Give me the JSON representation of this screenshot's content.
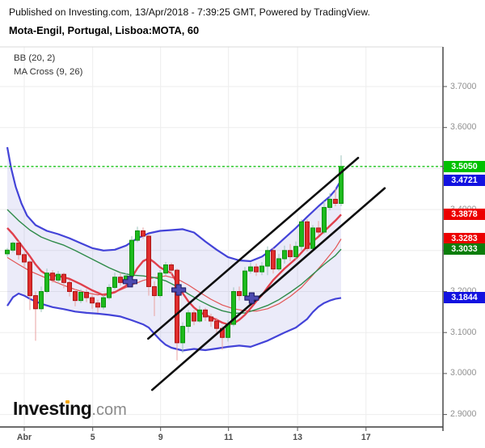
{
  "header": {
    "published_line": "Published on Investing.com, 13/Apr/2018 - 7:39:25 GMT, Powered by TradingView.",
    "instrument_line": "Mota-Engil, Portugal, Lisboa:MOTA, 60"
  },
  "legend": {
    "bb": "BB (20, 2)",
    "ma_cross": "MA Cross (9, 26)"
  },
  "logo": {
    "part1": "Invest",
    "part2": "i",
    "part3": "ng",
    "suffix": ".com"
  },
  "colors": {
    "grid": "#ededed",
    "plot_top_border": "#dadada",
    "axis_border": "#3c3c3c",
    "axis_tick": "#555555",
    "bb_band_line": "#4343d8",
    "bb_band_fill": "rgba(100,100,205,0.13)",
    "bb_basis_line": "#e35555",
    "ma9_line": "#e0404c",
    "ma26_line": "#2f8b4a",
    "candle_up_fill": "#1dbb1d",
    "candle_up_border": "#0f8f0f",
    "candle_up_wick": "#9cc4bd",
    "candle_down_fill": "#e12d2d",
    "candle_down_border": "#ab1616",
    "candle_down_wick": "#eaa0a0",
    "last_price_line": "#00bb00",
    "trendline": "#0e0e0e",
    "signal_marker_fill": "#4d4bb2",
    "signal_marker_border": "#26246b"
  },
  "chart_data": {
    "type": "candlestick",
    "symbol": "Lisboa:MOTA",
    "interval_minutes": 60,
    "title": "Mota-Engil, Portugal, Lisboa:MOTA, 60",
    "indicators": [
      {
        "name": "BB",
        "params": [
          20,
          2
        ]
      },
      {
        "name": "MA Cross",
        "params": [
          9,
          26
        ]
      }
    ],
    "ylim": [
      2.86,
      3.74
    ],
    "grid": true,
    "y_ticks": [
      {
        "label": "3.7000",
        "price": 3.7
      },
      {
        "label": "3.6000",
        "price": 3.6
      },
      {
        "label": "3.5000",
        "price": 3.5
      },
      {
        "label": "3.4000",
        "price": 3.4
      },
      {
        "label": "3.3000",
        "price": 3.3
      },
      {
        "label": "3.2000",
        "price": 3.2
      },
      {
        "label": "3.1000",
        "price": 3.1
      },
      {
        "label": "3.0000",
        "price": 3.0
      },
      {
        "label": "2.9000",
        "price": 2.9
      }
    ],
    "x_ticks": [
      {
        "label": "Abr",
        "bar": 3.0
      },
      {
        "label": "5",
        "bar": 15.1
      },
      {
        "label": "9",
        "bar": 27.1
      },
      {
        "label": "11",
        "bar": 39.1
      },
      {
        "label": "13",
        "bar": 51.3
      },
      {
        "label": "17",
        "bar": 63.4
      }
    ],
    "price_badges": [
      {
        "label": "3.5050",
        "price": 3.505,
        "bg": "#00c000",
        "meaning": "last-price"
      },
      {
        "label": "3.4721",
        "price": 3.4721,
        "bg": "#1212e0",
        "meaning": "bb-upper"
      },
      {
        "label": "3.3878",
        "price": 3.3878,
        "bg": "#ec0000",
        "meaning": "ma9"
      },
      {
        "label": "3.3283",
        "price": 3.3283,
        "bg": "#ec0000",
        "meaning": "bb-basis"
      },
      {
        "label": "3.3033",
        "price": 3.3033,
        "bg": "#0b7d0b",
        "meaning": "ma26"
      },
      {
        "label": "3.1844",
        "price": 3.1844,
        "bg": "#1212e0",
        "meaning": "bb-lower"
      }
    ],
    "last_price": 3.505,
    "candles_ohlc": [
      [
        3.292,
        3.306,
        3.285,
        3.301
      ],
      [
        3.301,
        3.322,
        3.296,
        3.318
      ],
      [
        3.318,
        3.322,
        3.278,
        3.29
      ],
      [
        3.29,
        3.296,
        3.26,
        3.272
      ],
      [
        3.272,
        3.276,
        3.155,
        3.19
      ],
      [
        3.19,
        3.2,
        3.08,
        3.158
      ],
      [
        3.158,
        3.212,
        3.15,
        3.2
      ],
      [
        3.2,
        3.256,
        3.196,
        3.245
      ],
      [
        3.245,
        3.252,
        3.222,
        3.228
      ],
      [
        3.228,
        3.25,
        3.22,
        3.242
      ],
      [
        3.242,
        3.246,
        3.208,
        3.222
      ],
      [
        3.222,
        3.228,
        3.188,
        3.2
      ],
      [
        3.2,
        3.206,
        3.164,
        3.178
      ],
      [
        3.178,
        3.206,
        3.172,
        3.198
      ],
      [
        3.198,
        3.206,
        3.174,
        3.185
      ],
      [
        3.185,
        3.192,
        3.158,
        3.172
      ],
      [
        3.172,
        3.18,
        3.148,
        3.162
      ],
      [
        3.162,
        3.192,
        3.156,
        3.185
      ],
      [
        3.185,
        3.218,
        3.18,
        3.21
      ],
      [
        3.21,
        3.246,
        3.205,
        3.235
      ],
      [
        3.235,
        3.246,
        3.214,
        3.222
      ],
      [
        3.222,
        3.245,
        3.218,
        3.238
      ],
      [
        3.238,
        3.335,
        3.232,
        3.325
      ],
      [
        3.325,
        3.358,
        3.32,
        3.348
      ],
      [
        3.348,
        3.356,
        3.328,
        3.335
      ],
      [
        3.335,
        3.34,
        3.19,
        3.212
      ],
      [
        3.212,
        3.225,
        3.14,
        3.19
      ],
      [
        3.19,
        3.252,
        3.185,
        3.245
      ],
      [
        3.245,
        3.272,
        3.24,
        3.265
      ],
      [
        3.265,
        3.27,
        3.242,
        3.252
      ],
      [
        3.252,
        3.256,
        3.032,
        3.075
      ],
      [
        3.075,
        3.125,
        3.05,
        3.115
      ],
      [
        3.115,
        3.155,
        3.1,
        3.148
      ],
      [
        3.148,
        3.155,
        3.118,
        3.128
      ],
      [
        3.128,
        3.165,
        3.124,
        3.155
      ],
      [
        3.155,
        3.16,
        3.128,
        3.138
      ],
      [
        3.138,
        3.146,
        3.114,
        3.128
      ],
      [
        3.128,
        3.136,
        3.098,
        3.11
      ],
      [
        3.11,
        3.116,
        3.058,
        3.088
      ],
      [
        3.088,
        3.13,
        3.078,
        3.12
      ],
      [
        3.12,
        3.21,
        3.115,
        3.2
      ],
      [
        3.2,
        3.212,
        3.178,
        3.19
      ],
      [
        3.19,
        3.26,
        3.185,
        3.25
      ],
      [
        3.25,
        3.27,
        3.244,
        3.26
      ],
      [
        3.26,
        3.268,
        3.238,
        3.248
      ],
      [
        3.248,
        3.272,
        3.24,
        3.262
      ],
      [
        3.262,
        3.31,
        3.24,
        3.3
      ],
      [
        3.3,
        3.306,
        3.244,
        3.255
      ],
      [
        3.255,
        3.292,
        3.25,
        3.28
      ],
      [
        3.28,
        3.312,
        3.268,
        3.3
      ],
      [
        3.3,
        3.316,
        3.274,
        3.285
      ],
      [
        3.285,
        3.322,
        3.278,
        3.31
      ],
      [
        3.31,
        3.376,
        3.3,
        3.37
      ],
      [
        3.37,
        3.376,
        3.298,
        3.305
      ],
      [
        3.305,
        3.362,
        3.3,
        3.355
      ],
      [
        3.355,
        3.372,
        3.338,
        3.345
      ],
      [
        3.345,
        3.42,
        3.34,
        3.405
      ],
      [
        3.405,
        3.44,
        3.398,
        3.425
      ],
      [
        3.425,
        3.452,
        3.408,
        3.415
      ],
      [
        3.415,
        3.532,
        3.408,
        3.505
      ]
    ],
    "bb_upper": [
      [
        0,
        3.552
      ],
      [
        0.7,
        3.5
      ],
      [
        1.5,
        3.455
      ],
      [
        2.5,
        3.415
      ],
      [
        3.5,
        3.385
      ],
      [
        5,
        3.362
      ],
      [
        7,
        3.348
      ],
      [
        9,
        3.34
      ],
      [
        11,
        3.33
      ],
      [
        13,
        3.318
      ],
      [
        15,
        3.306
      ],
      [
        17,
        3.3
      ],
      [
        19,
        3.302
      ],
      [
        21,
        3.312
      ],
      [
        23,
        3.33
      ],
      [
        25,
        3.342
      ],
      [
        27,
        3.348
      ],
      [
        29,
        3.35
      ],
      [
        31,
        3.352
      ],
      [
        33,
        3.344
      ],
      [
        35,
        3.322
      ],
      [
        37,
        3.302
      ],
      [
        39,
        3.284
      ],
      [
        41,
        3.276
      ],
      [
        43,
        3.274
      ],
      [
        45,
        3.285
      ],
      [
        47,
        3.305
      ],
      [
        49,
        3.33
      ],
      [
        51,
        3.355
      ],
      [
        53,
        3.382
      ],
      [
        55,
        3.408
      ],
      [
        57,
        3.432
      ],
      [
        58,
        3.448
      ],
      [
        59,
        3.4721
      ]
    ],
    "bb_lower": [
      [
        0,
        3.165
      ],
      [
        1,
        3.186
      ],
      [
        2,
        3.195
      ],
      [
        3,
        3.19
      ],
      [
        4,
        3.182
      ],
      [
        6,
        3.17
      ],
      [
        8,
        3.162
      ],
      [
        10,
        3.157
      ],
      [
        12,
        3.151
      ],
      [
        14,
        3.148
      ],
      [
        16,
        3.146
      ],
      [
        18,
        3.143
      ],
      [
        20,
        3.139
      ],
      [
        22,
        3.13
      ],
      [
        24,
        3.12
      ],
      [
        25,
        3.112
      ],
      [
        26,
        3.097
      ],
      [
        27,
        3.082
      ],
      [
        28,
        3.07
      ],
      [
        29,
        3.063
      ],
      [
        31,
        3.056
      ],
      [
        33,
        3.06
      ],
      [
        35,
        3.057
      ],
      [
        37,
        3.061
      ],
      [
        39,
        3.065
      ],
      [
        41,
        3.068
      ],
      [
        43,
        3.065
      ],
      [
        46,
        3.08
      ],
      [
        49,
        3.1
      ],
      [
        51,
        3.112
      ],
      [
        53,
        3.133
      ],
      [
        54,
        3.15
      ],
      [
        55,
        3.163
      ],
      [
        56,
        3.172
      ],
      [
        57,
        3.178
      ],
      [
        58,
        3.182
      ],
      [
        59,
        3.1844
      ]
    ],
    "bb_basis": [
      [
        0,
        3.283
      ],
      [
        2,
        3.266
      ],
      [
        4,
        3.25
      ],
      [
        6,
        3.238
      ],
      [
        8,
        3.226
      ],
      [
        10,
        3.215
      ],
      [
        12,
        3.205
      ],
      [
        14,
        3.197
      ],
      [
        16,
        3.192
      ],
      [
        18,
        3.196
      ],
      [
        20,
        3.204
      ],
      [
        22,
        3.216
      ],
      [
        24,
        3.227
      ],
      [
        26,
        3.234
      ],
      [
        28,
        3.238
      ],
      [
        30,
        3.231
      ],
      [
        32,
        3.216
      ],
      [
        34,
        3.198
      ],
      [
        36,
        3.181
      ],
      [
        38,
        3.167
      ],
      [
        40,
        3.158
      ],
      [
        42,
        3.153
      ],
      [
        44,
        3.152
      ],
      [
        46,
        3.158
      ],
      [
        48,
        3.17
      ],
      [
        50,
        3.188
      ],
      [
        52,
        3.21
      ],
      [
        54,
        3.24
      ],
      [
        56,
        3.272
      ],
      [
        58,
        3.306
      ],
      [
        59,
        3.3283
      ]
    ],
    "ma9": [
      [
        0,
        3.355
      ],
      [
        1,
        3.34
      ],
      [
        2,
        3.322
      ],
      [
        3,
        3.304
      ],
      [
        4,
        3.286
      ],
      [
        5,
        3.266
      ],
      [
        6,
        3.25
      ],
      [
        7,
        3.241
      ],
      [
        9,
        3.238
      ],
      [
        11,
        3.231
      ],
      [
        13,
        3.218
      ],
      [
        15,
        3.203
      ],
      [
        17,
        3.191
      ],
      [
        19,
        3.198
      ],
      [
        21,
        3.214
      ],
      [
        22,
        3.234
      ],
      [
        23,
        3.257
      ],
      [
        24,
        3.274
      ],
      [
        25,
        3.281
      ],
      [
        26,
        3.271
      ],
      [
        27,
        3.259
      ],
      [
        28,
        3.251
      ],
      [
        29,
        3.245
      ],
      [
        30,
        3.221
      ],
      [
        31,
        3.196
      ],
      [
        32,
        3.176
      ],
      [
        33,
        3.161
      ],
      [
        34,
        3.15
      ],
      [
        35,
        3.143
      ],
      [
        36,
        3.137
      ],
      [
        37,
        3.131
      ],
      [
        38,
        3.124
      ],
      [
        39,
        3.12
      ],
      [
        40,
        3.122
      ],
      [
        41,
        3.131
      ],
      [
        42,
        3.143
      ],
      [
        43,
        3.159
      ],
      [
        44,
        3.176
      ],
      [
        45,
        3.191
      ],
      [
        46,
        3.21
      ],
      [
        47,
        3.228
      ],
      [
        48,
        3.242
      ],
      [
        49,
        3.256
      ],
      [
        50,
        3.268
      ],
      [
        51,
        3.28
      ],
      [
        52,
        3.295
      ],
      [
        53,
        3.31
      ],
      [
        54,
        3.322
      ],
      [
        55,
        3.334
      ],
      [
        56,
        3.347
      ],
      [
        57,
        3.36
      ],
      [
        58,
        3.373
      ],
      [
        59,
        3.3878
      ]
    ],
    "ma26": [
      [
        0,
        3.4
      ],
      [
        2,
        3.373
      ],
      [
        4,
        3.35
      ],
      [
        6,
        3.333
      ],
      [
        8,
        3.322
      ],
      [
        10,
        3.313
      ],
      [
        12,
        3.3
      ],
      [
        14,
        3.286
      ],
      [
        16,
        3.272
      ],
      [
        18,
        3.258
      ],
      [
        20,
        3.246
      ],
      [
        22,
        3.24
      ],
      [
        24,
        3.238
      ],
      [
        26,
        3.234
      ],
      [
        28,
        3.226
      ],
      [
        30,
        3.212
      ],
      [
        32,
        3.194
      ],
      [
        34,
        3.178
      ],
      [
        36,
        3.164
      ],
      [
        38,
        3.153
      ],
      [
        40,
        3.147
      ],
      [
        42,
        3.148
      ],
      [
        44,
        3.156
      ],
      [
        46,
        3.166
      ],
      [
        48,
        3.18
      ],
      [
        50,
        3.198
      ],
      [
        52,
        3.218
      ],
      [
        54,
        3.242
      ],
      [
        56,
        3.266
      ],
      [
        58,
        3.288
      ],
      [
        59,
        3.3033
      ]
    ],
    "trendlines": [
      {
        "from": {
          "bar": 24.9,
          "price": 3.085
        },
        "to": {
          "bar": 62.0,
          "price": 3.526
        }
      },
      {
        "from": {
          "bar": 25.6,
          "price": 2.96
        },
        "to": {
          "bar": 66.7,
          "price": 3.452
        }
      }
    ],
    "signal_markers": [
      {
        "bar": 21.7,
        "price": 3.224
      },
      {
        "bar": 30.3,
        "price": 3.204
      },
      {
        "bar": 43.2,
        "price": 3.184
      }
    ]
  }
}
